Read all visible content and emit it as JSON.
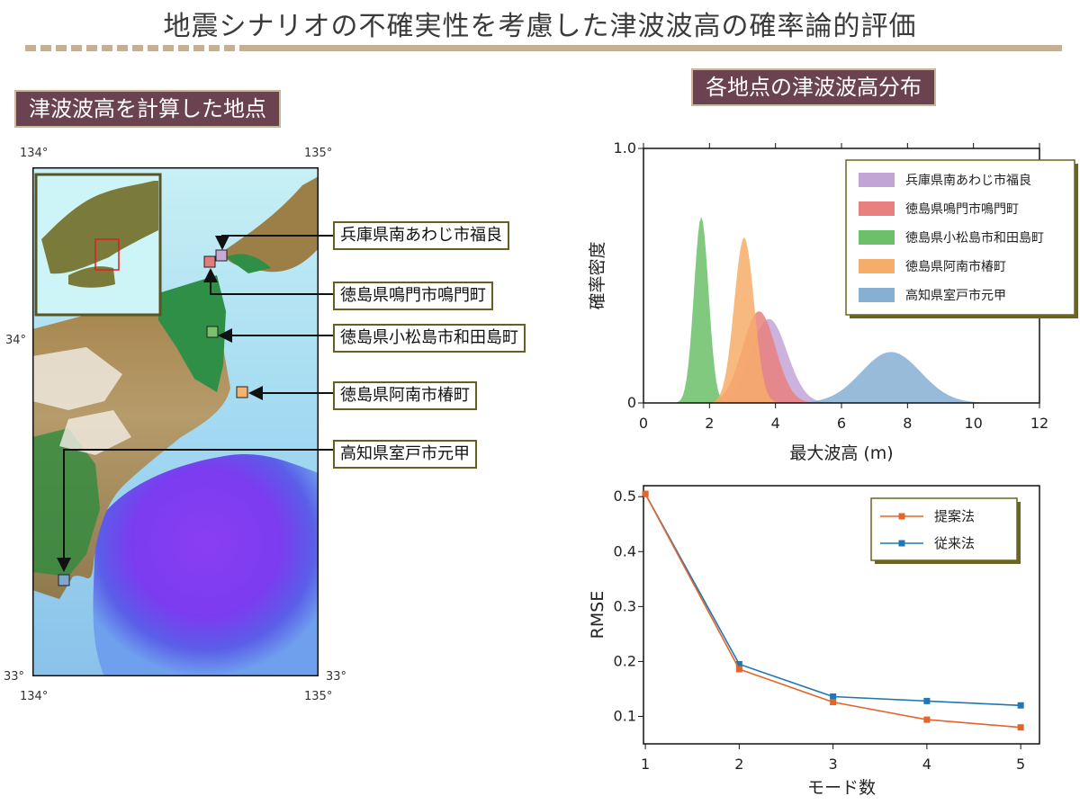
{
  "title": "地震シナリオの不確実性を考慮した津波波高の確率論的評価",
  "left_heading": "津波波高を計算した地点",
  "right_heading": "各地点の津波波高分布",
  "map": {
    "lon_labels": [
      "134°",
      "135°"
    ],
    "lat_labels": [
      "34°",
      "33°"
    ],
    "sites": [
      {
        "name": "兵庫県南あわじ市福良",
        "color": "#c9a8d8"
      },
      {
        "name": "徳島県鳴門市鳴門町",
        "color": "#e27b7b"
      },
      {
        "name": "徳島県小松島市和田島町",
        "color": "#79c06f"
      },
      {
        "name": "徳島県阿南市椿町",
        "color": "#f7b36b"
      },
      {
        "name": "高知県室戸市元甲",
        "color": "#7fa8cf"
      }
    ]
  },
  "chart_data": [
    {
      "type": "area",
      "xlabel": "最大波高 (m)",
      "ylabel": "確率密度",
      "xlim": [
        0,
        12
      ],
      "ylim": [
        0,
        1.0
      ],
      "xticks": [
        0,
        2,
        4,
        6,
        8,
        10,
        12
      ],
      "yticks": [
        0,
        1.0
      ],
      "legend": "top-right",
      "series": [
        {
          "name": "兵庫県南あわじ市福良",
          "color": "#c3a4d6",
          "mean": 3.8,
          "sd": 0.55,
          "peak": 0.33
        },
        {
          "name": "徳島県鳴門市鳴門町",
          "color": "#e88080",
          "mean": 3.5,
          "sd": 0.5,
          "peak": 0.36
        },
        {
          "name": "徳島県小松島市和田島町",
          "color": "#6cc06a",
          "mean": 1.75,
          "sd": 0.22,
          "peak": 0.73
        },
        {
          "name": "徳島県阿南市椿町",
          "color": "#f7ad6a",
          "mean": 3.05,
          "sd": 0.3,
          "peak": 0.65
        },
        {
          "name": "高知県室戸市元甲",
          "color": "#86afd2",
          "mean": 7.5,
          "sd": 0.9,
          "peak": 0.2
        }
      ]
    },
    {
      "type": "line",
      "xlabel": "モード数",
      "ylabel": "RMSE",
      "xlim": [
        0.98,
        5.2
      ],
      "ylim": [
        0.05,
        0.52
      ],
      "xticks": [
        1,
        2,
        3,
        4,
        5
      ],
      "yticks": [
        0.1,
        0.2,
        0.3,
        0.4,
        0.5
      ],
      "ytick_labels": [
        "0.1",
        "0.2",
        "0.3",
        "0.4",
        "0.5"
      ],
      "legend": "top-right",
      "x": [
        1,
        2,
        3,
        4,
        5
      ],
      "series": [
        {
          "name": "提案法",
          "color": "#e5642a",
          "values": [
            0.505,
            0.186,
            0.126,
            0.094,
            0.08
          ]
        },
        {
          "name": "従来法",
          "color": "#1f77b4",
          "values": [
            0.505,
            0.195,
            0.136,
            0.128,
            0.12
          ]
        }
      ]
    }
  ]
}
